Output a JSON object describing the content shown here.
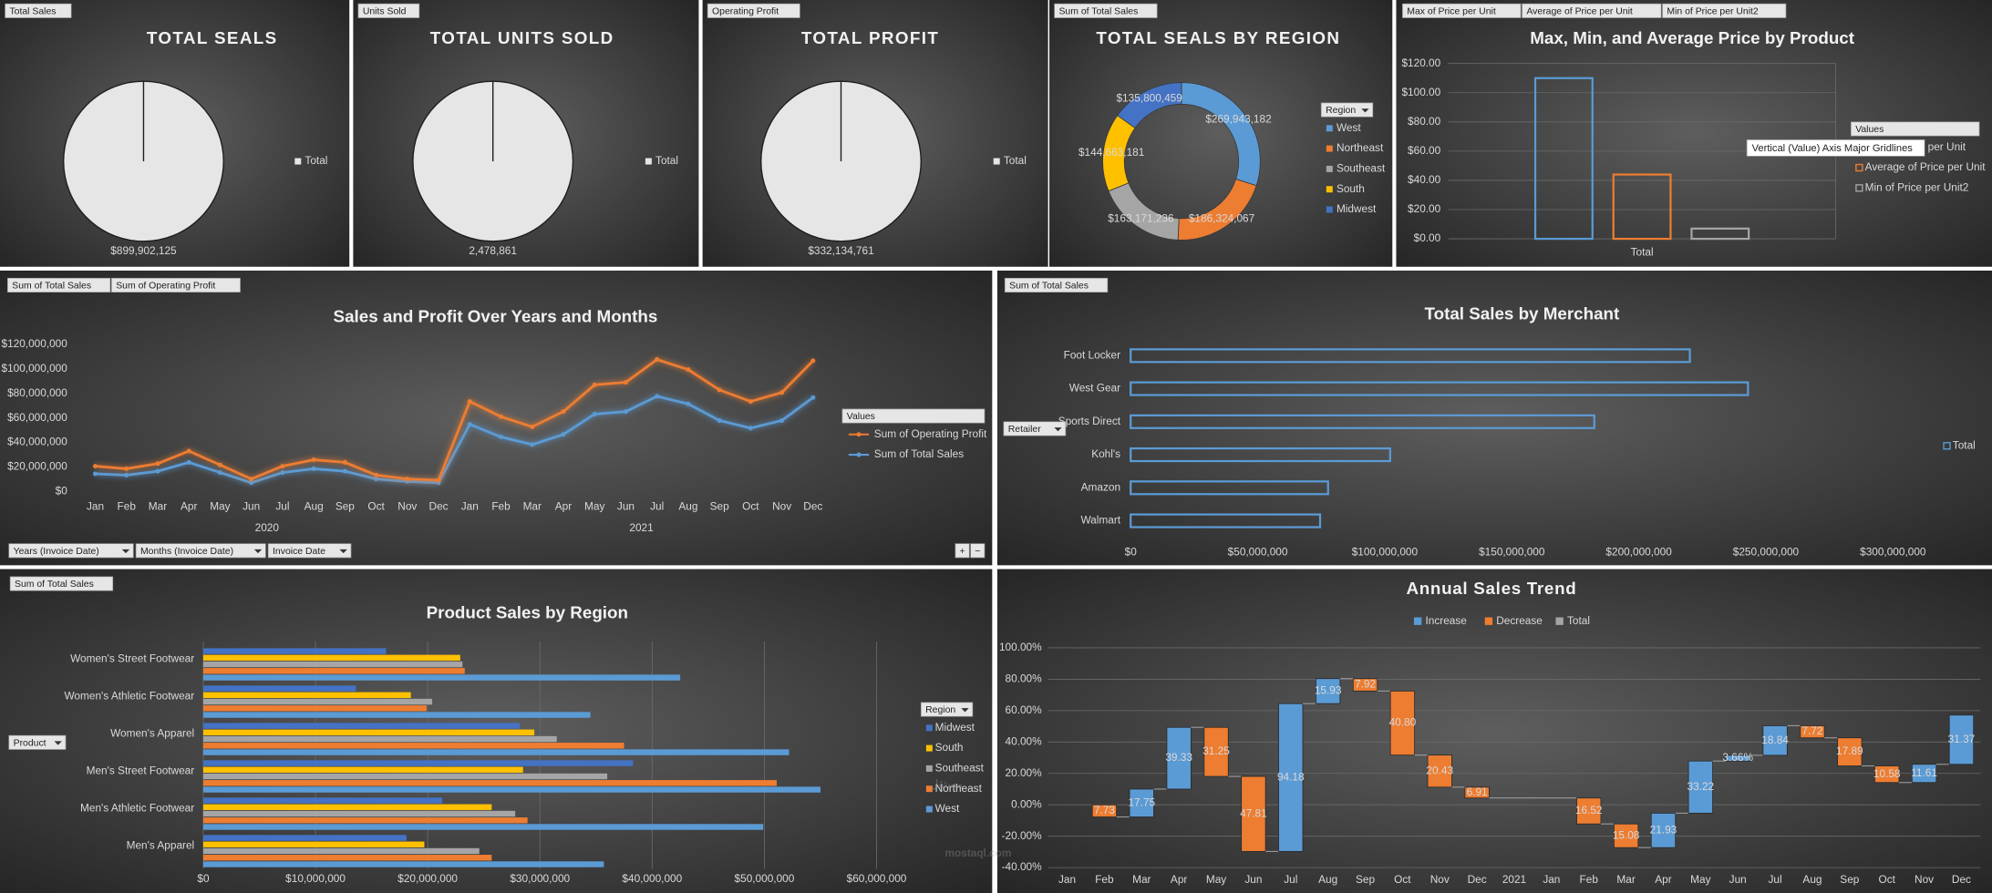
{
  "chart_data": [
    {
      "type": "pie",
      "field_buttons": [
        "Total Sales"
      ],
      "title": "TOTAL SEALS",
      "categories": [
        "Total"
      ],
      "values": [
        899902125
      ],
      "value_labels": [
        "$899,902,125"
      ],
      "color": "#e7e6e6"
    },
    {
      "type": "pie",
      "field_buttons": [
        "Units Sold"
      ],
      "title": "TOTAL UNITS SOLD",
      "categories": [
        "Total"
      ],
      "values": [
        2478861
      ],
      "value_labels": [
        "2,478,861"
      ],
      "color": "#e7e6e6"
    },
    {
      "type": "pie",
      "field_buttons": [
        "Operating Profit"
      ],
      "title": "TOTAL PROFIT",
      "categories": [
        "Total"
      ],
      "values": [
        332134761
      ],
      "value_labels": [
        "$332,134,761"
      ],
      "color": "#e7e6e6"
    },
    {
      "type": "donut",
      "field_buttons": [
        "Sum of Total Sales"
      ],
      "title": "TOTAL SEALS BY REGION",
      "legend_title": "Region",
      "categories": [
        "West",
        "Northeast",
        "Southeast",
        "South",
        "Midwest"
      ],
      "values": [
        269943182,
        186324067,
        163171236,
        144663181,
        135800459
      ],
      "value_labels": [
        "$269,943,182",
        "$186,324,067",
        "$163,171,236",
        "$144,663,181",
        "$135,800,459"
      ],
      "colors": [
        "#5b9bd5",
        "#ed7d31",
        "#a5a5a5",
        "#ffc000",
        "#4472c4"
      ]
    },
    {
      "type": "column",
      "field_buttons": [
        "Max of Price per Unit",
        "Average of Price per Unit",
        "Min of Price per Unit2"
      ],
      "title": "Max, Min, and Average Price by Product",
      "legend_title": "Values",
      "categories": [
        "Total"
      ],
      "series": [
        {
          "name": "Max of Price per Unit",
          "color": "#5b9bd5",
          "values": [
            110
          ]
        },
        {
          "name": "Average of Price per Unit",
          "color": "#ed7d31",
          "values": [
            44
          ]
        },
        {
          "name": "Min of Price per Unit2",
          "color": "#a5a5a5",
          "values": [
            7
          ]
        }
      ],
      "ylim": [
        0,
        120
      ],
      "yticks": [
        {
          "value": 0,
          "label": "$0.00"
        },
        {
          "value": 20,
          "label": "$20.00"
        },
        {
          "value": 40,
          "label": "$40.00"
        },
        {
          "value": 60,
          "label": "$60.00"
        },
        {
          "value": 80,
          "label": "$80.00"
        },
        {
          "value": 100,
          "label": "$100.00"
        },
        {
          "value": 120,
          "label": "$120.00"
        }
      ],
      "grid": true,
      "tooltip": "Vertical (Value) Axis Major Gridlines"
    },
    {
      "type": "line",
      "stacked": true,
      "field_buttons": [
        "Sum of Total Sales",
        "Sum of Operating Profit"
      ],
      "title": "Sales and Profit Over Years and Months",
      "legend_title": "Values",
      "categories": [
        "Jan",
        "Feb",
        "Mar",
        "Apr",
        "May",
        "Jun",
        "Jul",
        "Aug",
        "Sep",
        "Oct",
        "Nov",
        "Dec",
        "Jan",
        "Feb",
        "Mar",
        "Apr",
        "May",
        "Jun",
        "Jul",
        "Aug",
        "Sep",
        "Oct",
        "Nov",
        "Dec"
      ],
      "groups": [
        "2020",
        "2021"
      ],
      "series": [
        {
          "name": "Sum of Total Sales",
          "color": "#5b9bd5",
          "values": [
            14500000,
            13400000,
            16600000,
            23800000,
            15500000,
            7200000,
            15500000,
            18600000,
            16600000,
            10300000,
            8300000,
            7200000,
            54800000,
            44500000,
            38300000,
            46600000,
            63100000,
            65200000,
            77600000,
            71400000,
            57900000,
            51700000,
            57900000,
            76600000
          ]
        },
        {
          "name": "Sum of Operating Profit",
          "color": "#ed7d31",
          "values": [
            6200000,
            5200000,
            6200000,
            9200000,
            6200000,
            3100000,
            5200000,
            7300000,
            7200000,
            3100000,
            2000000,
            2100000,
            18600000,
            16500000,
            14500000,
            18600000,
            23800000,
            23800000,
            30000000,
            27900000,
            24900000,
            21700000,
            22800000,
            30000000
          ]
        }
      ],
      "ylim": [
        0,
        120000000
      ],
      "yticks": [
        {
          "value": 0,
          "label": "$0"
        },
        {
          "value": 20000000,
          "label": "$20,000,000"
        },
        {
          "value": 40000000,
          "label": "$40,000,000"
        },
        {
          "value": 60000000,
          "label": "$60,000,000"
        },
        {
          "value": 80000000,
          "label": "$80,000,000"
        },
        {
          "value": 100000000,
          "label": "$100,000,000"
        },
        {
          "value": 120000000,
          "label": "$120,000,000"
        }
      ],
      "axis_fields": [
        "Years (Invoice Date)",
        "Months (Invoice Date)",
        "Invoice Date"
      ],
      "zoom_buttons": [
        "+",
        "−"
      ]
    },
    {
      "type": "hbar",
      "field_buttons": [
        "Sum of Total Sales"
      ],
      "row_field": "Retailer",
      "title": "Total Sales by Merchant",
      "categories": [
        "Foot Locker",
        "West Gear",
        "Sports Direct",
        "Kohl's",
        "Amazon",
        "Walmart"
      ],
      "series": [
        {
          "name": "Total",
          "color": "#5b9bd5",
          "values": [
            220094720,
            242964333,
            182470997,
            102114753,
            77698912,
            74558410
          ]
        }
      ],
      "xlim": [
        0,
        300000000
      ],
      "xticks": [
        {
          "value": 0,
          "label": "$0"
        },
        {
          "value": 50000000,
          "label": "$50,000,000"
        },
        {
          "value": 100000000,
          "label": "$100,000,000"
        },
        {
          "value": 150000000,
          "label": "$150,000,000"
        },
        {
          "value": 200000000,
          "label": "$200,000,000"
        },
        {
          "value": 250000000,
          "label": "$250,000,000"
        },
        {
          "value": 300000000,
          "label": "$300,000,000"
        }
      ]
    },
    {
      "type": "grouped_hbar",
      "field_buttons": [
        "Sum of Total Sales"
      ],
      "row_field": "Product",
      "title": "Product Sales by Region",
      "legend_title": "Region",
      "categories": [
        "Women's Street Footwear",
        "Women's Athletic Footwear",
        "Women's Apparel",
        "Men's Street Footwear",
        "Men's Athletic Footwear",
        "Men's Apparel"
      ],
      "series": [
        {
          "name": "Midwest",
          "color": "#4472c4",
          "values": [
            16300000,
            13600000,
            28200000,
            38300000,
            21300000,
            18100000
          ]
        },
        {
          "name": "South",
          "color": "#ffc000",
          "values": [
            22900000,
            18500000,
            29500000,
            28500000,
            25700000,
            19700000
          ]
        },
        {
          "name": "Southeast",
          "color": "#a5a5a5",
          "values": [
            23100000,
            20400000,
            31500000,
            36000000,
            27800000,
            24600000
          ]
        },
        {
          "name": "Northeast",
          "color": "#ed7d31",
          "values": [
            23300000,
            19900000,
            37500000,
            51100000,
            28900000,
            25700000
          ]
        },
        {
          "name": "West",
          "color": "#5b9bd5",
          "values": [
            42500000,
            34500000,
            52200000,
            55000000,
            49900000,
            35700000
          ]
        }
      ],
      "xlim": [
        0,
        60000000
      ],
      "xticks": [
        {
          "value": 0,
          "label": "$0"
        },
        {
          "value": 10000000,
          "label": "$10,000,000"
        },
        {
          "value": 20000000,
          "label": "$20,000,000"
        },
        {
          "value": 30000000,
          "label": "$30,000,000"
        },
        {
          "value": 40000000,
          "label": "$40,000,000"
        },
        {
          "value": 50000000,
          "label": "$50,000,000"
        },
        {
          "value": 60000000,
          "label": "$60,000,000"
        }
      ],
      "grid": true
    },
    {
      "type": "waterfall",
      "title": "Annual Sales Trend",
      "legend": [
        {
          "name": "Increase",
          "color": "#5b9bd5"
        },
        {
          "name": "Decrease",
          "color": "#ed7d31"
        },
        {
          "name": "Total",
          "color": "#a5a5a5"
        }
      ],
      "categories": [
        "Jan",
        "Feb",
        "Mar",
        "Apr",
        "May",
        "Jun",
        "Jul",
        "Aug",
        "Sep",
        "Oct",
        "Nov",
        "Dec",
        "2021",
        "Jan",
        "Feb",
        "Mar",
        "Apr",
        "May",
        "Jun",
        "Jul",
        "Aug",
        "Sep",
        "Oct",
        "Nov",
        "Dec"
      ],
      "values": [
        null,
        -7.73,
        17.75,
        39.33,
        -31.25,
        -47.81,
        94.18,
        15.93,
        -7.92,
        -40.8,
        -20.43,
        -6.91,
        null,
        null,
        -16.52,
        -15.08,
        21.93,
        33.22,
        3.66,
        18.84,
        -7.72,
        -17.89,
        -10.58,
        11.61,
        31.37
      ],
      "value_labels": [
        null,
        "7.73",
        "17.75",
        "39.33",
        "31.25",
        "47.81",
        "94.18",
        "15.93",
        "7.92",
        "40.80",
        "20.43",
        "6.91",
        null,
        null,
        "16.52",
        "15.08",
        "21.93",
        "33.22",
        "3.66%",
        "18.84",
        "7.72",
        "17.89",
        "10.58",
        "11.61",
        "31.37"
      ],
      "ylim": [
        -40,
        100
      ],
      "yticks": [
        {
          "value": -40,
          "label": "-40.00%"
        },
        {
          "value": -20,
          "label": "-20.00%"
        },
        {
          "value": 0,
          "label": "0.00%"
        },
        {
          "value": 20,
          "label": "20.00%"
        },
        {
          "value": 40,
          "label": "40.00%"
        },
        {
          "value": 60,
          "label": "60.00%"
        },
        {
          "value": 80,
          "label": "80.00%"
        },
        {
          "value": 100,
          "label": "100.00%"
        }
      ],
      "grid": true
    }
  ],
  "watermark": [
    "مستقل",
    "mostaql.com"
  ]
}
